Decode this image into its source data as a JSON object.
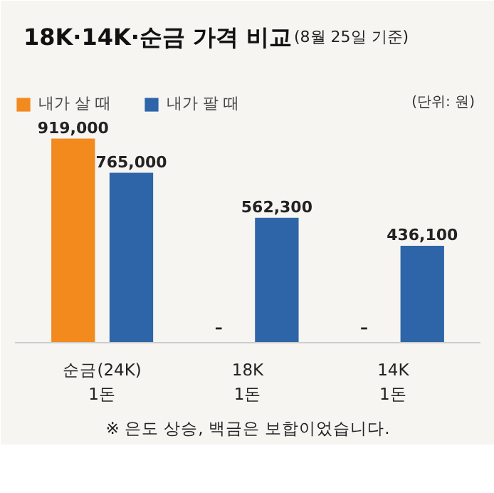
{
  "chart_data": {
    "type": "bar",
    "title": "18K·14K·순금 가격 비교",
    "subtitle": "(8월 25일 기준)",
    "categories": [
      "순금(24K)\n1돈",
      "18K\n1돈",
      "14K\n1돈"
    ],
    "series": [
      {
        "name": "내가 살 때",
        "color": "#f28a1e",
        "values": [
          919000,
          null,
          null
        ],
        "value_labels": [
          "919,000",
          "–",
          "–"
        ]
      },
      {
        "name": "내가 팔 때",
        "color": "#2e65a8",
        "values": [
          765000,
          562300,
          436100
        ],
        "value_labels": [
          "765,000",
          "562,300",
          "436,100"
        ]
      }
    ],
    "legend": "top left",
    "annotations": [
      "(단위: 원)",
      "※ 은도 상승, 백금은 보합이었습니다."
    ]
  }
}
